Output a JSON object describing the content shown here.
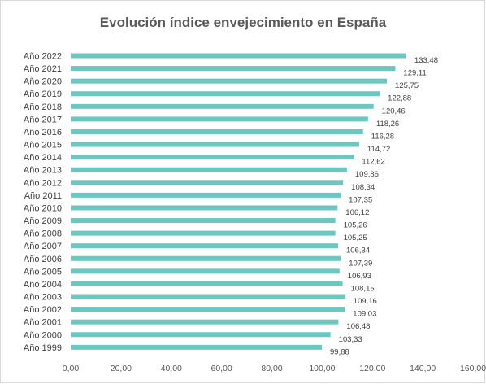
{
  "chart_data": {
    "type": "bar",
    "orientation": "horizontal",
    "title": "Evolución índice envejecimiento en España",
    "categories": [
      "Año 2022",
      "Año 2021",
      "Año 2020",
      "Año 2019",
      "Año 2018",
      "Año 2017",
      "Año 2016",
      "Año 2015",
      "Año 2014",
      "Año 2013",
      "Año 2012",
      "Año 2011",
      "Año 2010",
      "Año 2009",
      "Año 2008",
      "Año 2007",
      "Año 2006",
      "Año 2005",
      "Año 2004",
      "Año 2003",
      "Año 2002",
      "Año 2001",
      "Año 2000",
      "Año 1999"
    ],
    "values": [
      133.48,
      129.11,
      125.75,
      122.88,
      120.46,
      118.26,
      116.28,
      114.72,
      112.62,
      109.86,
      108.34,
      107.35,
      106.12,
      105.26,
      105.25,
      106.34,
      107.39,
      106.93,
      108.15,
      109.16,
      109.03,
      106.48,
      103.33,
      99.88
    ],
    "value_labels": [
      "133,48",
      "129,11",
      "125,75",
      "122,88",
      "120,46",
      "118,26",
      "116,28",
      "114,72",
      "112,62",
      "109,86",
      "108,34",
      "107,35",
      "106,12",
      "105,26",
      "105,25",
      "106,34",
      "107,39",
      "106,93",
      "108,15",
      "109,16",
      "109,03",
      "106,48",
      "103,33",
      "99,88"
    ],
    "xlim": [
      0,
      160
    ],
    "x_ticks": [
      0,
      20,
      40,
      60,
      80,
      100,
      120,
      140,
      160
    ],
    "x_tick_labels": [
      "0,00",
      "20,00",
      "40,00",
      "60,00",
      "80,00",
      "100,00",
      "120,00",
      "140,00",
      "160,00"
    ],
    "grid": false,
    "legend": "none",
    "bar_color": "#6cc7c0"
  }
}
